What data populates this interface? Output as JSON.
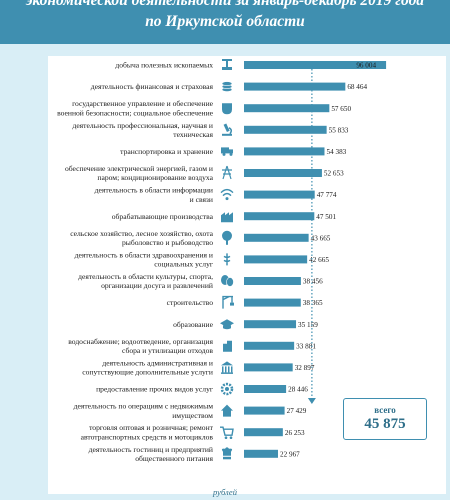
{
  "header": {
    "title_line1": "экономической деятельности за январь-декабрь 2019 года",
    "title_line2": "по Иркутской области"
  },
  "total": {
    "label": "всего",
    "value": "45 875"
  },
  "unit": "рублей",
  "colors": {
    "bar": "#3f8fb0",
    "header": "#3f8fb0",
    "background": "#d9eef6",
    "icon": "#3f8fb0",
    "dotted": "#3f8fb0"
  },
  "chart_data": {
    "type": "bar",
    "orientation": "horizontal",
    "title": "",
    "xlabel": "",
    "ylabel": "",
    "average_line": 45875,
    "xlim": [
      0,
      100000
    ],
    "categories": [
      [
        "добыча полезных ископаемых"
      ],
      [
        "деятельность финансовая и страховая"
      ],
      [
        "государственное управление и обеспечение",
        "военной безопасности; социальное обеспечение"
      ],
      [
        "деятельность профессиональная, научная и",
        "техническая"
      ],
      [
        "транспортировка и хранение"
      ],
      [
        "обеспечение электрической энергией, газом и",
        "паром; кондиционирование воздуха"
      ],
      [
        "деятельность в области информации",
        "и связи"
      ],
      [
        "обрабатывающие производства"
      ],
      [
        "сельское хозяйство, лесное хозяйство, охота",
        "рыболовство и рыбоводство"
      ],
      [
        "деятельность в области здравоохранения и",
        "социальных услуг"
      ],
      [
        "деятельность в области культуры, спорта,",
        "организации досуга и развлечений"
      ],
      [
        "строительство"
      ],
      [
        "образование"
      ],
      [
        "водоснабжение; водоотведение, организация",
        "сбора и утилизации отходов"
      ],
      [
        "деятельность административная и",
        "сопутствующие дополнительные услуги"
      ],
      [
        "предоставление прочих видов услуг"
      ],
      [
        "деятельность по операциям с недвижимым",
        "имуществом"
      ],
      [
        "торговля оптовая и розничная; ремонт",
        "автотранспортных средств и мотоциклов"
      ],
      [
        "деятельность гостиниц и предприятий",
        "общественного питания"
      ]
    ],
    "values": [
      96004,
      68464,
      57650,
      55833,
      54383,
      52653,
      47774,
      47501,
      43665,
      42665,
      38456,
      38365,
      35159,
      33881,
      32897,
      28446,
      27429,
      26253,
      22967
    ],
    "value_labels": [
      "96 004",
      "68 464",
      "57 650",
      "55 833",
      "54 383",
      "52 653",
      "47 774",
      "47 501",
      "43 665",
      "42 665",
      "38 456",
      "38 365",
      "35 159",
      "33 881",
      "32 897",
      "28 446",
      "27 429",
      "26 253",
      "22 967"
    ],
    "icons": [
      "mining-icon",
      "coins-icon",
      "emblem-icon",
      "microscope-icon",
      "truck-icon",
      "power-tower-icon",
      "wifi-icon",
      "factory-icon",
      "tree-icon",
      "medical-icon",
      "theater-masks-icon",
      "crane-icon",
      "graduation-cap-icon",
      "water-drop-icon",
      "government-building-icon",
      "gear-icon",
      "house-icon",
      "shopping-cart-icon",
      "chef-hat-icon"
    ]
  }
}
